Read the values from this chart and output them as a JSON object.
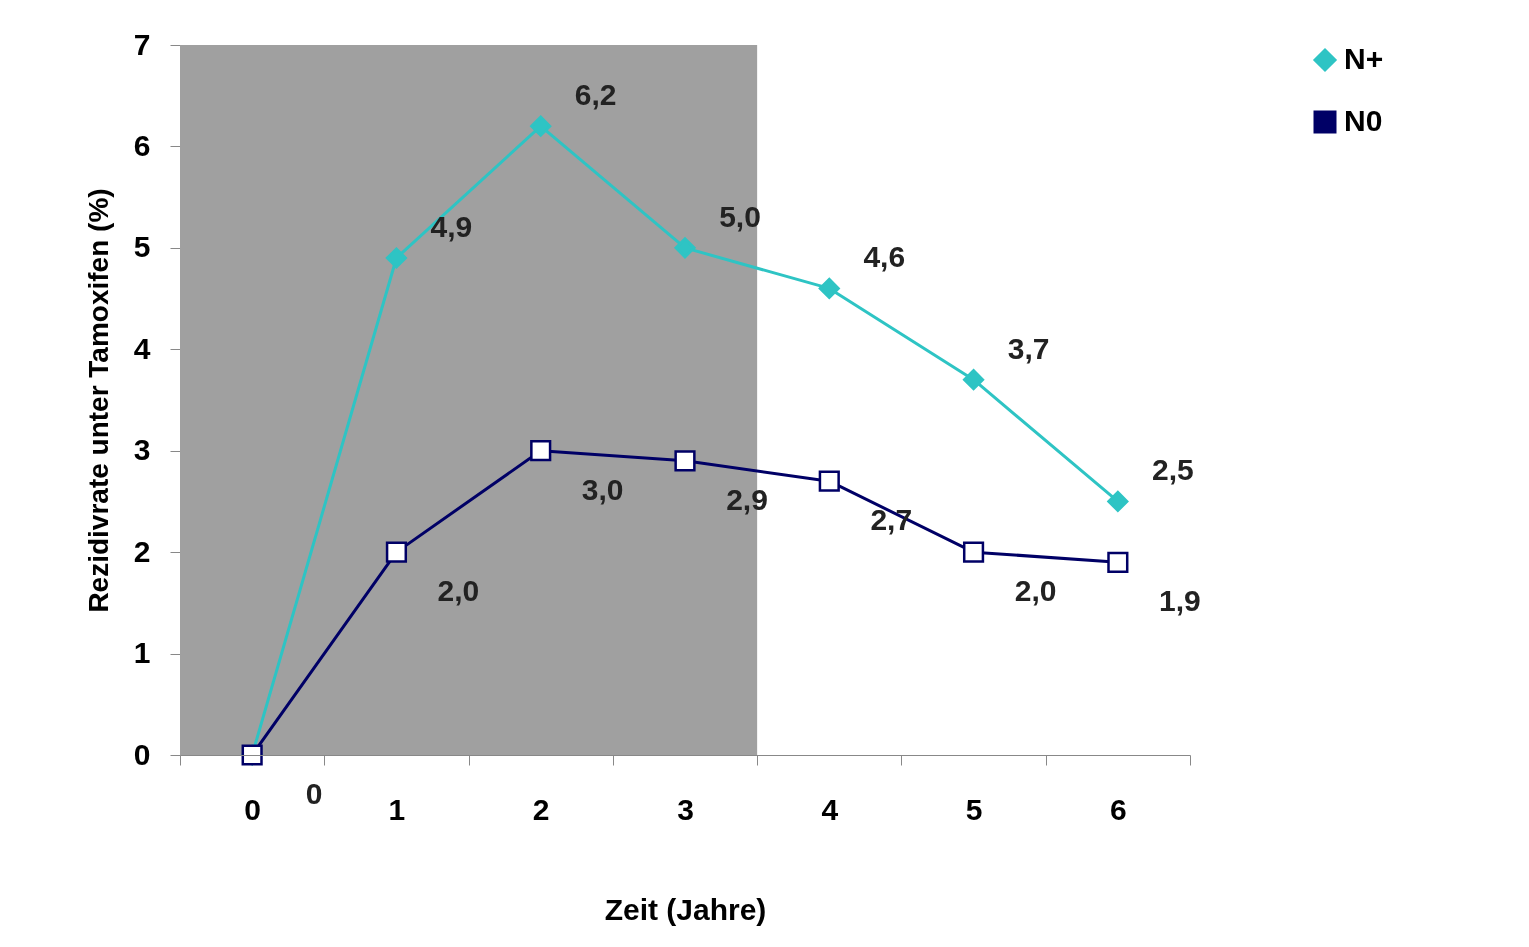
{
  "chart_data": {
    "type": "line",
    "xlabel": "Zeit (Jahre)",
    "ylabel": "Rezidivrate unter Tamoxifen (%)",
    "categories": [
      "0",
      "1",
      "2",
      "3",
      "4",
      "5",
      "6"
    ],
    "series": [
      {
        "name": "N+",
        "color": "#2ec4c4",
        "marker": "diamond",
        "values": [
          0,
          4.9,
          6.2,
          5.0,
          4.6,
          3.7,
          2.5
        ],
        "value_labels": [
          null,
          "4,9",
          "6,2",
          "5,0",
          "4,6",
          "3,7",
          "2,5"
        ]
      },
      {
        "name": "N0",
        "color": "#000066",
        "marker": "square",
        "values": [
          0,
          2.0,
          3.0,
          2.9,
          2.7,
          2.0,
          1.9
        ],
        "value_labels": [
          "0",
          "2,0",
          "3,0",
          "2,9",
          "2,7",
          "2,0",
          "1,9"
        ]
      }
    ],
    "ylim": [
      0,
      7
    ],
    "yticks": [
      {
        "value": 0,
        "label": "0"
      },
      {
        "value": 1,
        "label": "1"
      },
      {
        "value": 2,
        "label": "2"
      },
      {
        "value": 3,
        "label": "3"
      },
      {
        "value": 4,
        "label": "4"
      },
      {
        "value": 5,
        "label": "5"
      },
      {
        "value": 6,
        "label": "6"
      },
      {
        "value": 7,
        "label": "7"
      }
    ],
    "grid": false,
    "legend": "right",
    "bands": [
      {
        "axis": "x",
        "from": "0",
        "to": "3",
        "color": "#a0a0a0"
      }
    ]
  }
}
